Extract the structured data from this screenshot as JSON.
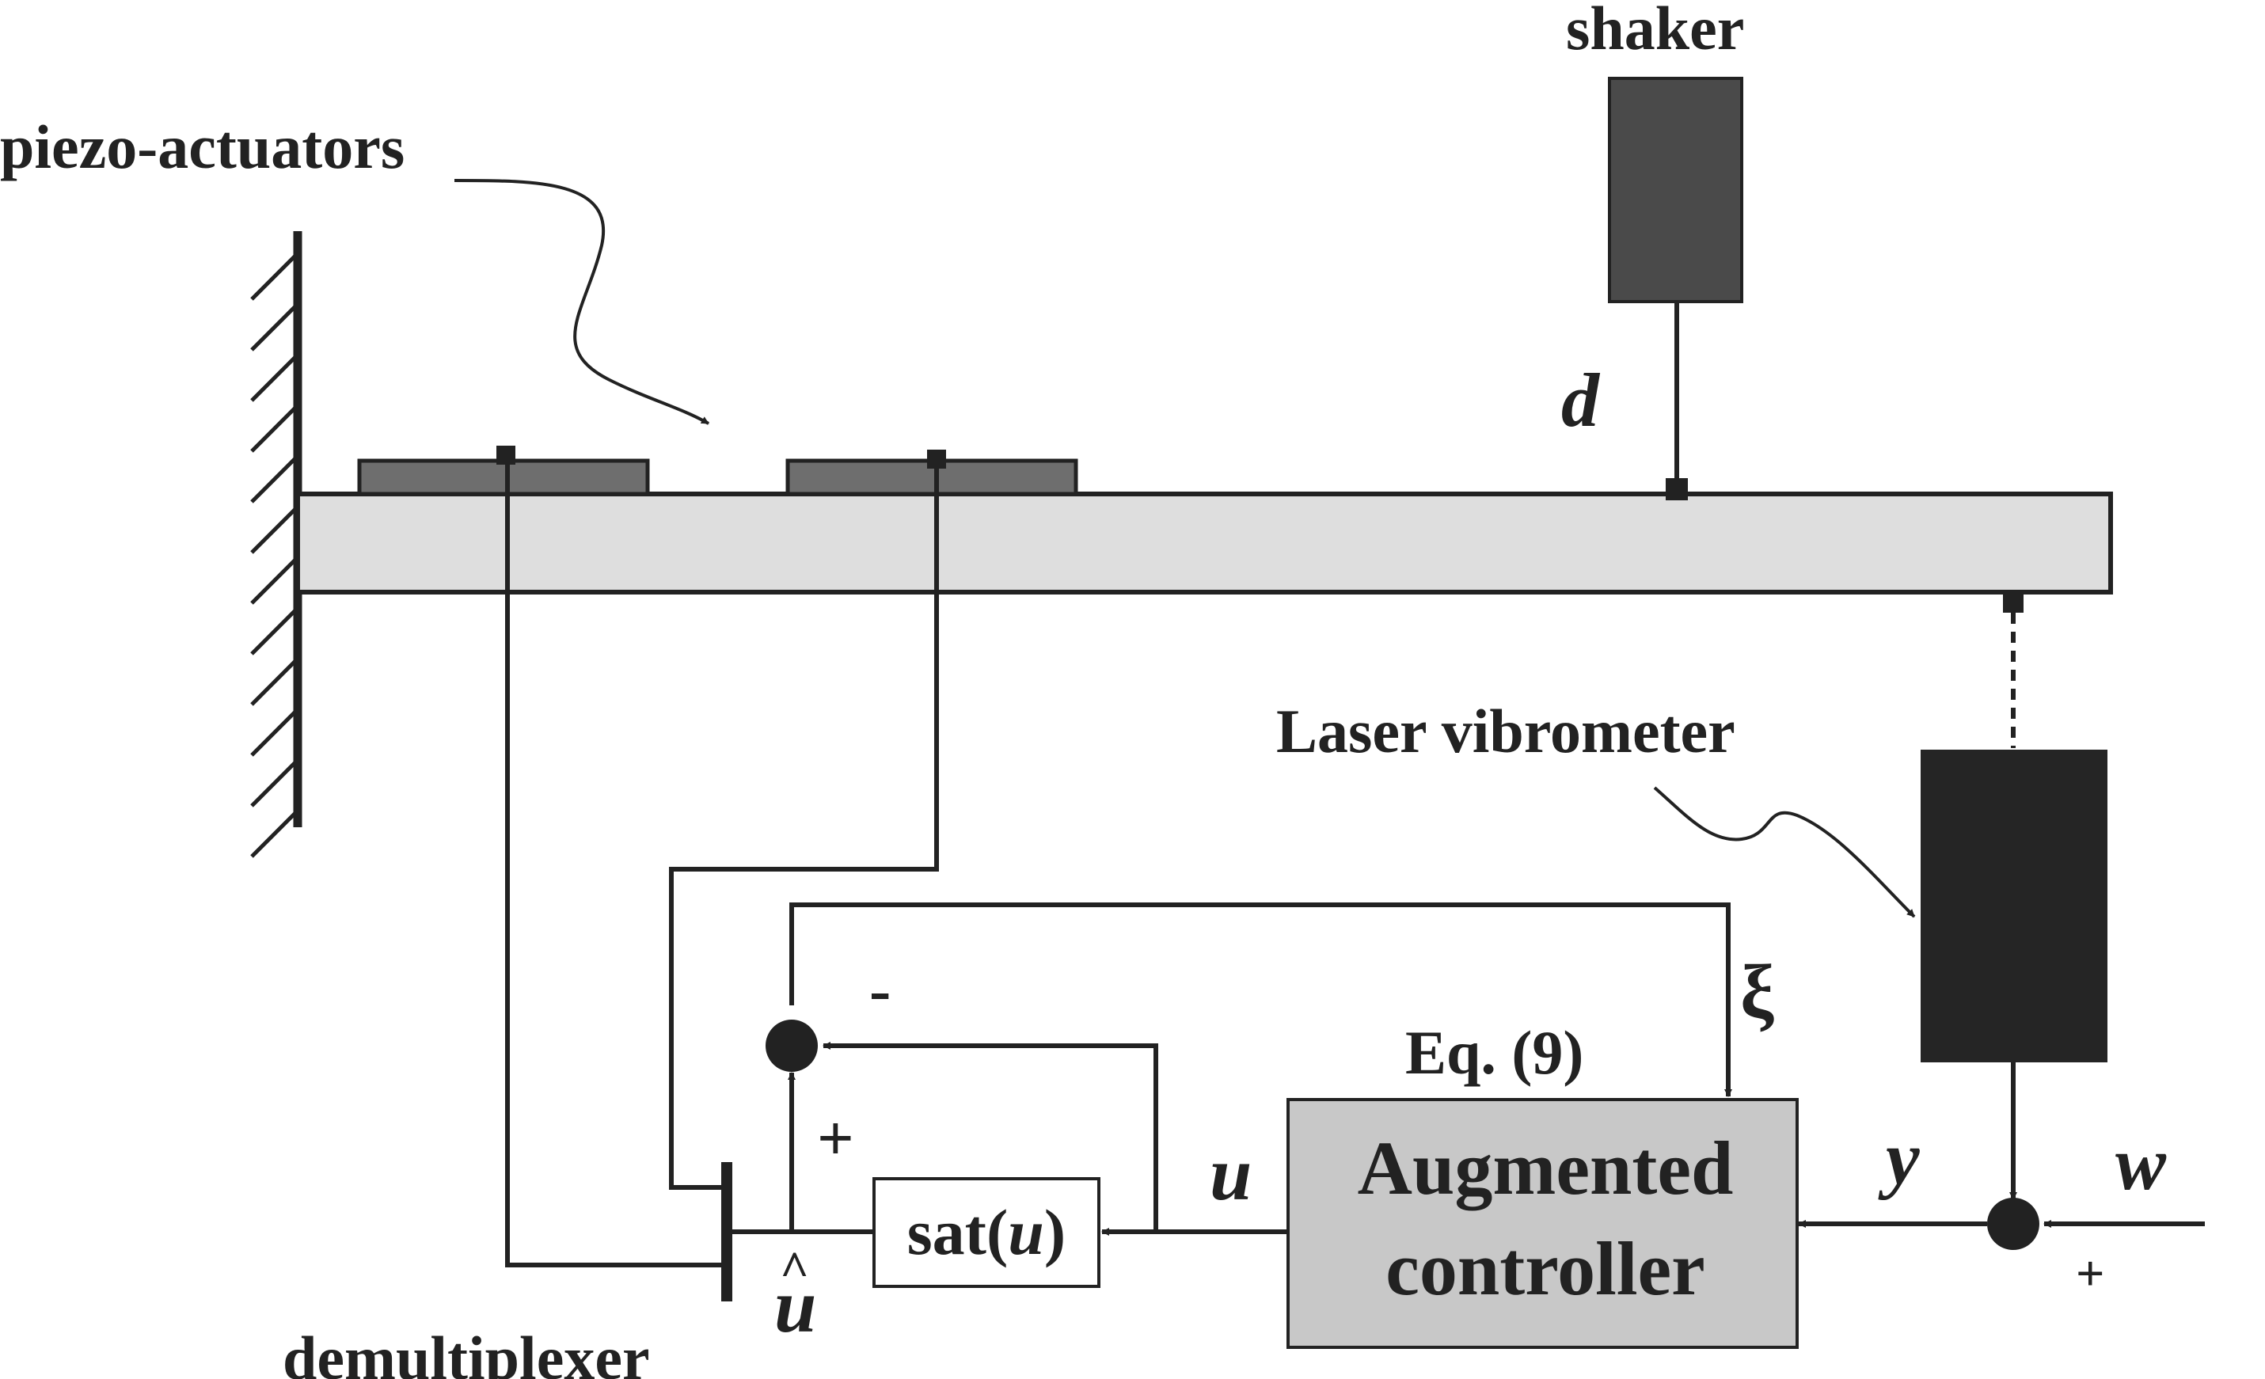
{
  "labels": {
    "piezo_actuators": "piezo-actuators",
    "shaker": "shaker",
    "disturbance": "d",
    "laser_vibrometer": "Laser vibrometer",
    "demultiplexer": "demultiplexer",
    "sat_prefix": "sat(",
    "sat_var": "u",
    "sat_suffix": ")",
    "u_signal": "u",
    "u_hat": "u",
    "u_hat_accent": "^",
    "xi": "ξ",
    "eq_ref": "Eq. (9)",
    "controller_line1": "Augmented",
    "controller_line2": "controller",
    "y_signal": "y",
    "w_signal": "w",
    "minus_sign": "-",
    "plus_sign_left": "+",
    "plus_sign_right": "+"
  },
  "colors": {
    "beam": "#dedede",
    "piezo": "#6e6e6e",
    "shaker": "#4a4a4a",
    "vibrometer": "#252525",
    "controller": "#c8c8c8",
    "ink": "#222222"
  }
}
